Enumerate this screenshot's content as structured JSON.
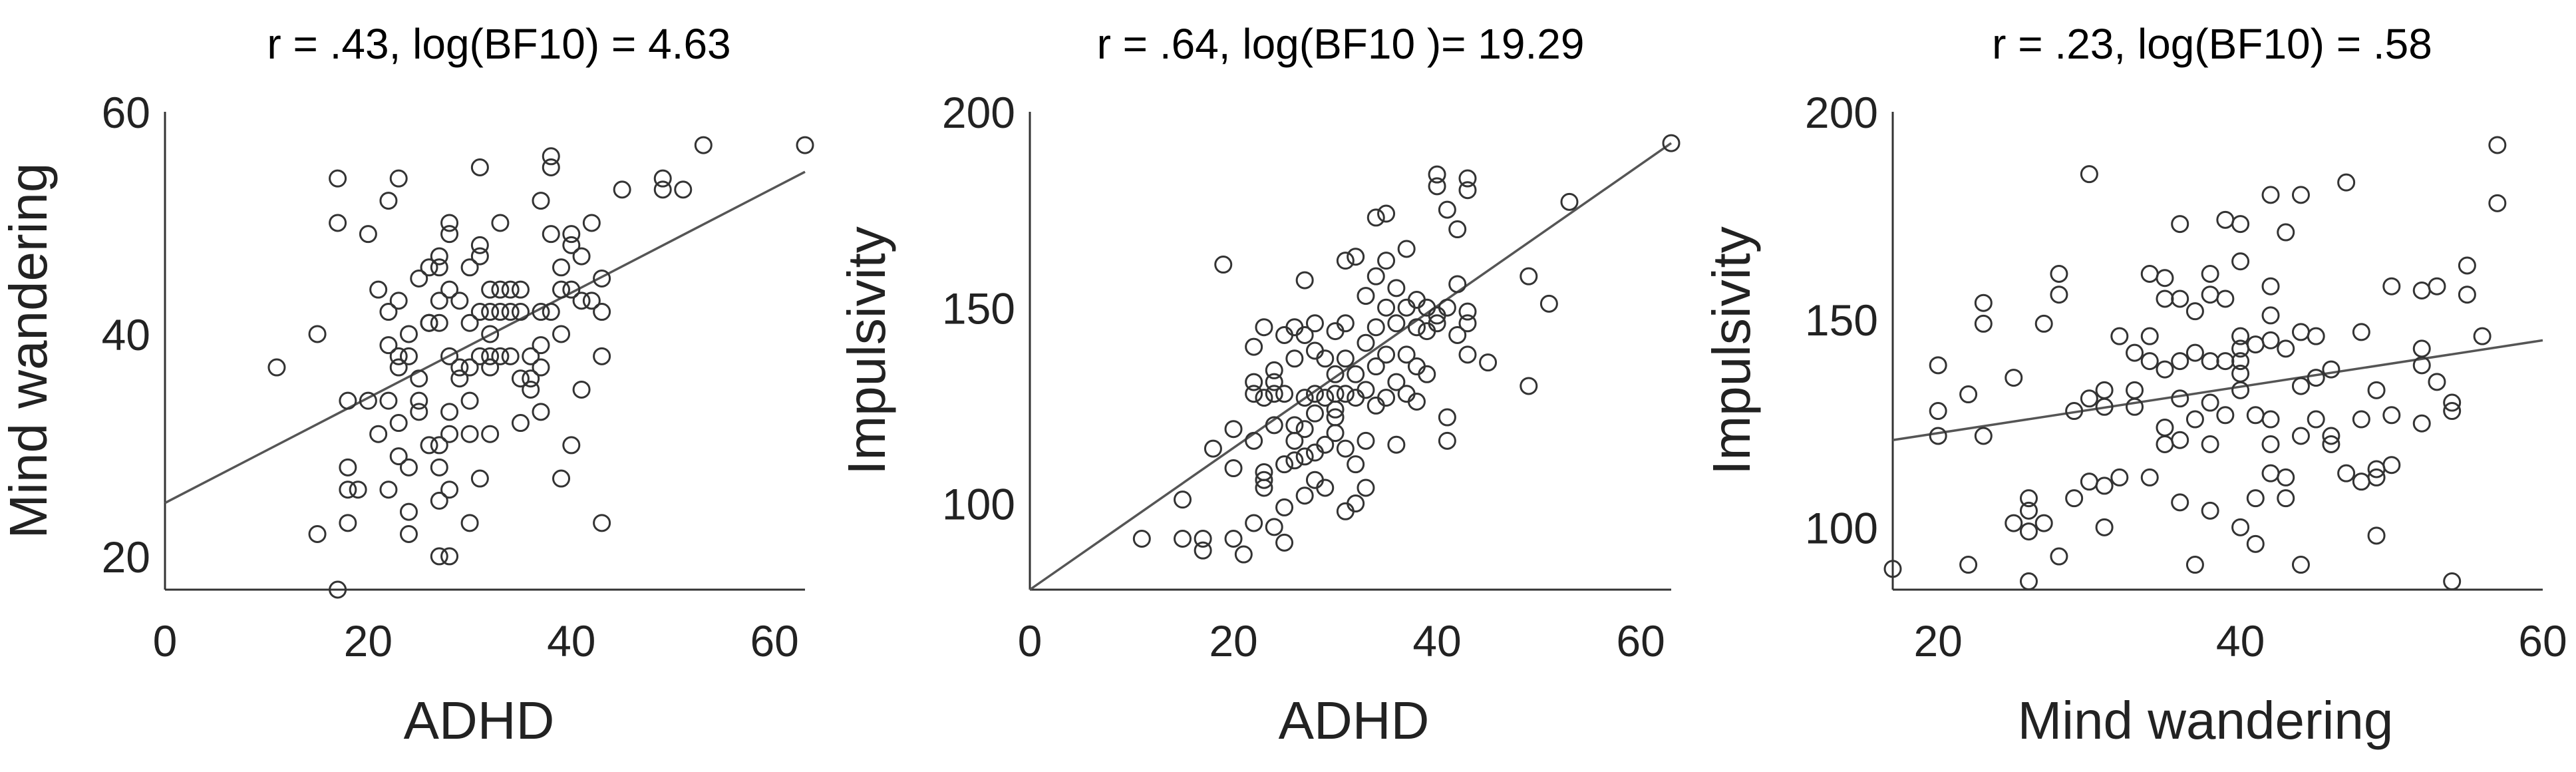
{
  "chart_data": [
    {
      "type": "scatter",
      "title": "r = .43, log(BF10) = 4.63",
      "xlabel": "ADHD",
      "ylabel": "Mind wandering",
      "xlim": [
        0,
        63
      ],
      "ylim": [
        17,
        60
      ],
      "xticks": [
        0,
        20,
        40,
        60
      ],
      "yticks": [
        20,
        40,
        60
      ],
      "fit_line": [
        [
          0,
          24.8
        ],
        [
          63,
          54.6
        ]
      ],
      "points": [
        [
          11,
          37
        ],
        [
          15,
          22
        ],
        [
          15,
          40
        ],
        [
          17,
          17
        ],
        [
          17,
          54
        ],
        [
          17,
          50
        ],
        [
          18,
          34
        ],
        [
          18,
          28
        ],
        [
          18,
          26
        ],
        [
          18,
          23
        ],
        [
          19,
          26
        ],
        [
          20,
          49
        ],
        [
          20,
          34
        ],
        [
          21,
          44
        ],
        [
          21,
          31
        ],
        [
          22,
          42
        ],
        [
          22,
          34
        ],
        [
          22,
          26
        ],
        [
          22,
          39
        ],
        [
          22,
          52
        ],
        [
          23,
          54
        ],
        [
          23,
          37
        ],
        [
          23,
          43
        ],
        [
          23,
          32
        ],
        [
          23,
          29
        ],
        [
          23,
          38
        ],
        [
          24,
          40
        ],
        [
          24,
          28
        ],
        [
          24,
          24
        ],
        [
          24,
          22
        ],
        [
          24,
          38
        ],
        [
          25,
          45
        ],
        [
          25,
          36
        ],
        [
          25,
          34
        ],
        [
          25,
          33
        ],
        [
          26,
          41
        ],
        [
          26,
          30
        ],
        [
          26,
          46
        ],
        [
          26,
          41
        ],
        [
          26,
          41
        ],
        [
          27,
          46
        ],
        [
          27,
          41
        ],
        [
          27,
          43
        ],
        [
          27,
          30
        ],
        [
          27,
          25
        ],
        [
          27,
          28
        ],
        [
          27,
          20
        ],
        [
          27,
          47
        ],
        [
          28,
          44
        ],
        [
          28,
          38
        ],
        [
          28,
          33
        ],
        [
          28,
          31
        ],
        [
          28,
          20
        ],
        [
          28,
          26
        ],
        [
          28,
          49
        ],
        [
          28,
          50
        ],
        [
          29,
          43
        ],
        [
          29,
          36
        ],
        [
          29,
          37
        ],
        [
          30,
          41
        ],
        [
          30,
          37
        ],
        [
          30,
          31
        ],
        [
          30,
          23
        ],
        [
          30,
          34
        ],
        [
          30,
          46
        ],
        [
          31,
          48
        ],
        [
          31,
          42
        ],
        [
          31,
          38
        ],
        [
          31,
          27
        ],
        [
          31,
          47
        ],
        [
          31,
          55
        ],
        [
          32,
          44
        ],
        [
          32,
          42
        ],
        [
          32,
          40
        ],
        [
          32,
          37
        ],
        [
          32,
          38
        ],
        [
          32,
          31
        ],
        [
          33,
          50
        ],
        [
          33,
          44
        ],
        [
          33,
          42
        ],
        [
          33,
          38
        ],
        [
          34,
          42
        ],
        [
          34,
          44
        ],
        [
          34,
          38
        ],
        [
          35,
          42
        ],
        [
          35,
          44
        ],
        [
          35,
          36
        ],
        [
          35,
          32
        ],
        [
          36,
          38
        ],
        [
          36,
          36
        ],
        [
          36,
          35
        ],
        [
          37,
          52
        ],
        [
          37,
          42
        ],
        [
          37,
          39
        ],
        [
          37,
          37
        ],
        [
          37,
          33
        ],
        [
          38,
          56
        ],
        [
          38,
          55
        ],
        [
          38,
          49
        ],
        [
          38,
          42
        ],
        [
          39,
          40
        ],
        [
          39,
          44
        ],
        [
          39,
          27
        ],
        [
          39,
          46
        ],
        [
          40,
          48
        ],
        [
          40,
          44
        ],
        [
          40,
          30
        ],
        [
          40,
          49
        ],
        [
          41,
          47
        ],
        [
          41,
          43
        ],
        [
          41,
          35
        ],
        [
          42,
          50
        ],
        [
          42,
          43
        ],
        [
          43,
          45
        ],
        [
          43,
          42
        ],
        [
          43,
          38
        ],
        [
          43,
          23
        ],
        [
          45,
          53
        ],
        [
          49,
          54
        ],
        [
          49,
          53
        ],
        [
          51,
          53
        ],
        [
          53,
          57
        ],
        [
          63,
          57
        ]
      ]
    },
    {
      "type": "scatter",
      "title": "r = .64, log(BF10 )= 19.29",
      "xlabel": "ADHD",
      "ylabel": "Impulsivity",
      "xlim": [
        0,
        63
      ],
      "ylim": [
        78,
        200
      ],
      "xticks": [
        0,
        20,
        40,
        60
      ],
      "yticks": [
        100,
        150,
        200
      ],
      "fit_line": [
        [
          0,
          78
        ],
        [
          63,
          192
        ]
      ],
      "points": [
        [
          11,
          91
        ],
        [
          15,
          91
        ],
        [
          15,
          101
        ],
        [
          17,
          88
        ],
        [
          17,
          91
        ],
        [
          18,
          114
        ],
        [
          19,
          161
        ],
        [
          20,
          109
        ],
        [
          20,
          119
        ],
        [
          20,
          91
        ],
        [
          21,
          87
        ],
        [
          22,
          131
        ],
        [
          22,
          128
        ],
        [
          22,
          140
        ],
        [
          22,
          95
        ],
        [
          22,
          116
        ],
        [
          23,
          145
        ],
        [
          23,
          127
        ],
        [
          23,
          108
        ],
        [
          23,
          104
        ],
        [
          23,
          106
        ],
        [
          24,
          134
        ],
        [
          24,
          120
        ],
        [
          24,
          128
        ],
        [
          24,
          131
        ],
        [
          24,
          94
        ],
        [
          25,
          143
        ],
        [
          25,
          128
        ],
        [
          25,
          110
        ],
        [
          25,
          99
        ],
        [
          25,
          90
        ],
        [
          26,
          145
        ],
        [
          26,
          137
        ],
        [
          26,
          120
        ],
        [
          26,
          116
        ],
        [
          26,
          111
        ],
        [
          27,
          143
        ],
        [
          27,
          127
        ],
        [
          27,
          119
        ],
        [
          27,
          112
        ],
        [
          27,
          102
        ],
        [
          27,
          157
        ],
        [
          28,
          139
        ],
        [
          28,
          128
        ],
        [
          28,
          123
        ],
        [
          28,
          113
        ],
        [
          28,
          106
        ],
        [
          28,
          146
        ],
        [
          29,
          137
        ],
        [
          29,
          127
        ],
        [
          29,
          115
        ],
        [
          29,
          104
        ],
        [
          30,
          133
        ],
        [
          30,
          128
        ],
        [
          30,
          124
        ],
        [
          30,
          122
        ],
        [
          30,
          118
        ],
        [
          30,
          144
        ],
        [
          31,
          162
        ],
        [
          31,
          146
        ],
        [
          31,
          137
        ],
        [
          31,
          128
        ],
        [
          31,
          114
        ],
        [
          31,
          98
        ],
        [
          32,
          163
        ],
        [
          32,
          133
        ],
        [
          32,
          127
        ],
        [
          32,
          110
        ],
        [
          32,
          100
        ],
        [
          33,
          153
        ],
        [
          33,
          141
        ],
        [
          33,
          129
        ],
        [
          33,
          116
        ],
        [
          33,
          104
        ],
        [
          34,
          173
        ],
        [
          34,
          158
        ],
        [
          34,
          145
        ],
        [
          34,
          135
        ],
        [
          34,
          125
        ],
        [
          35,
          162
        ],
        [
          35,
          174
        ],
        [
          35,
          150
        ],
        [
          35,
          138
        ],
        [
          35,
          127
        ],
        [
          36,
          155
        ],
        [
          36,
          146
        ],
        [
          36,
          131
        ],
        [
          36,
          115
        ],
        [
          37,
          165
        ],
        [
          37,
          150
        ],
        [
          37,
          138
        ],
        [
          37,
          128
        ],
        [
          38,
          152
        ],
        [
          38,
          145
        ],
        [
          38,
          135
        ],
        [
          38,
          126
        ],
        [
          39,
          150
        ],
        [
          39,
          144
        ],
        [
          39,
          133
        ],
        [
          40,
          184
        ],
        [
          40,
          181
        ],
        [
          40,
          148
        ],
        [
          40,
          146
        ],
        [
          41,
          175
        ],
        [
          41,
          150
        ],
        [
          41,
          122
        ],
        [
          41,
          116
        ],
        [
          42,
          170
        ],
        [
          42,
          156
        ],
        [
          42,
          143
        ],
        [
          43,
          183
        ],
        [
          43,
          180
        ],
        [
          43,
          149
        ],
        [
          43,
          146
        ],
        [
          43,
          138
        ],
        [
          45,
          136
        ],
        [
          49,
          158
        ],
        [
          49,
          130
        ],
        [
          51,
          151
        ],
        [
          53,
          177
        ],
        [
          63,
          192
        ]
      ]
    },
    {
      "type": "scatter",
      "title": "r = .23, log(BF10) = .58",
      "xlabel": "Mind wandering",
      "ylabel": "Impulsivity",
      "xlim": [
        17,
        60
      ],
      "ylim": [
        85,
        200
      ],
      "xticks": [
        20,
        40,
        60
      ],
      "yticks": [
        100,
        150,
        200
      ],
      "fit_line": [
        [
          17,
          121
        ],
        [
          60,
          145
        ]
      ],
      "points": [
        [
          17,
          90
        ],
        [
          20,
          139
        ],
        [
          20,
          128
        ],
        [
          20,
          122
        ],
        [
          22,
          132
        ],
        [
          22,
          91
        ],
        [
          23,
          154
        ],
        [
          23,
          149
        ],
        [
          23,
          122
        ],
        [
          25,
          136
        ],
        [
          25,
          101
        ],
        [
          26,
          107
        ],
        [
          26,
          104
        ],
        [
          26,
          99
        ],
        [
          26,
          87
        ],
        [
          27,
          101
        ],
        [
          27,
          149
        ],
        [
          28,
          161
        ],
        [
          28,
          156
        ],
        [
          28,
          93
        ],
        [
          29,
          128
        ],
        [
          29,
          107
        ],
        [
          30,
          185
        ],
        [
          30,
          131
        ],
        [
          30,
          111
        ],
        [
          31,
          133
        ],
        [
          31,
          129
        ],
        [
          31,
          110
        ],
        [
          31,
          100
        ],
        [
          32,
          146
        ],
        [
          32,
          112
        ],
        [
          33,
          142
        ],
        [
          33,
          133
        ],
        [
          33,
          129
        ],
        [
          34,
          161
        ],
        [
          34,
          146
        ],
        [
          34,
          140
        ],
        [
          34,
          112
        ],
        [
          35,
          160
        ],
        [
          35,
          155
        ],
        [
          35,
          138
        ],
        [
          35,
          124
        ],
        [
          35,
          120
        ],
        [
          36,
          173
        ],
        [
          36,
          155
        ],
        [
          36,
          140
        ],
        [
          36,
          131
        ],
        [
          36,
          121
        ],
        [
          36,
          106
        ],
        [
          37,
          152
        ],
        [
          37,
          142
        ],
        [
          37,
          126
        ],
        [
          37,
          91
        ],
        [
          38,
          161
        ],
        [
          38,
          156
        ],
        [
          38,
          140
        ],
        [
          38,
          130
        ],
        [
          38,
          120
        ],
        [
          38,
          104
        ],
        [
          39,
          174
        ],
        [
          39,
          155
        ],
        [
          39,
          140
        ],
        [
          39,
          127
        ],
        [
          40,
          173
        ],
        [
          40,
          164
        ],
        [
          40,
          146
        ],
        [
          40,
          143
        ],
        [
          40,
          140
        ],
        [
          40,
          137
        ],
        [
          40,
          133
        ],
        [
          40,
          100
        ],
        [
          41,
          144
        ],
        [
          41,
          127
        ],
        [
          41,
          107
        ],
        [
          41,
          96
        ],
        [
          42,
          180
        ],
        [
          42,
          158
        ],
        [
          42,
          151
        ],
        [
          42,
          145
        ],
        [
          42,
          126
        ],
        [
          42,
          120
        ],
        [
          42,
          113
        ],
        [
          43,
          171
        ],
        [
          43,
          143
        ],
        [
          43,
          112
        ],
        [
          43,
          107
        ],
        [
          44,
          180
        ],
        [
          44,
          147
        ],
        [
          44,
          134
        ],
        [
          44,
          122
        ],
        [
          44,
          91
        ],
        [
          45,
          146
        ],
        [
          45,
          136
        ],
        [
          45,
          126
        ],
        [
          46,
          138
        ],
        [
          46,
          120
        ],
        [
          46,
          122
        ],
        [
          47,
          183
        ],
        [
          47,
          113
        ],
        [
          48,
          147
        ],
        [
          48,
          126
        ],
        [
          48,
          111
        ],
        [
          49,
          133
        ],
        [
          49,
          114
        ],
        [
          49,
          112
        ],
        [
          49,
          98
        ],
        [
          50,
          158
        ],
        [
          50,
          127
        ],
        [
          50,
          115
        ],
        [
          52,
          157
        ],
        [
          52,
          143
        ],
        [
          52,
          139
        ],
        [
          52,
          125
        ],
        [
          53,
          158
        ],
        [
          53,
          135
        ],
        [
          54,
          130
        ],
        [
          54,
          128
        ],
        [
          54,
          87
        ],
        [
          55,
          163
        ],
        [
          55,
          156
        ],
        [
          56,
          146
        ],
        [
          57,
          192
        ],
        [
          57,
          178
        ]
      ]
    }
  ]
}
